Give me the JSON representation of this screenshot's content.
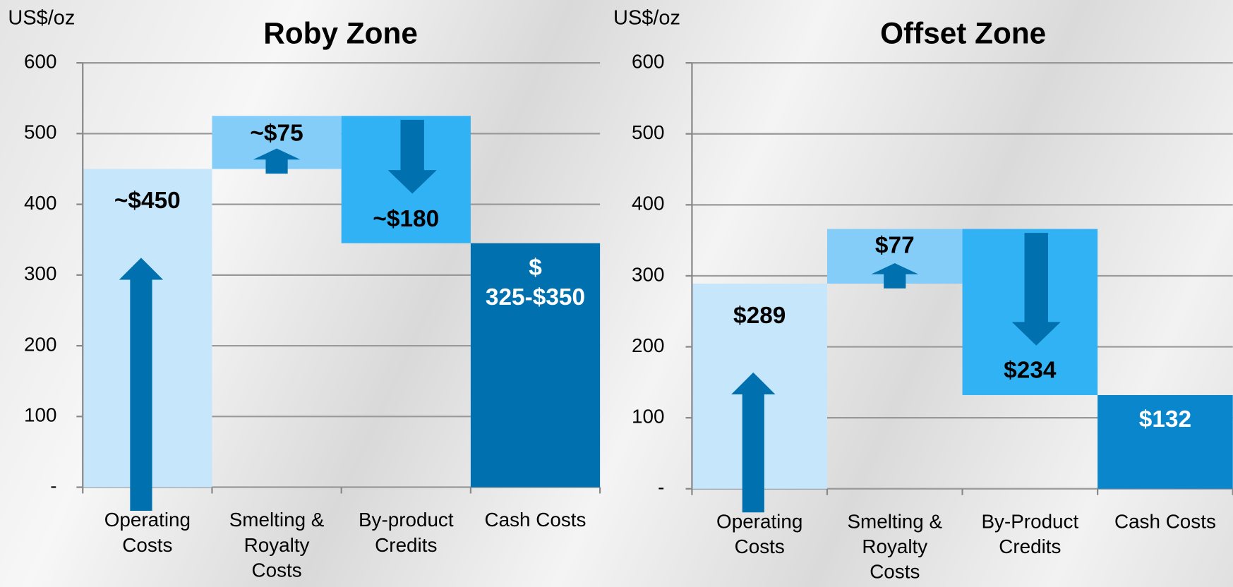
{
  "chart_data": [
    {
      "type": "waterfall",
      "title": "Roby Zone",
      "y_label": "US$/oz",
      "categories": [
        "Operating Costs",
        "Smelting & Royalty Costs",
        "By-product Credits",
        "Cash Costs"
      ],
      "values": [
        450,
        75,
        -180,
        345
      ],
      "value_labels": [
        "~$450",
        "~$75",
        "~$180",
        "$ 325-$350"
      ],
      "colors": [
        "#c5e6fb",
        "#84cdf8",
        "#30b2f5",
        "#0070ae"
      ],
      "ylim": [
        0,
        600
      ],
      "yticks": [
        {
          "value": 0,
          "label": "-"
        },
        100,
        200,
        300,
        400,
        500,
        600
      ],
      "grid": true
    },
    {
      "type": "waterfall",
      "title": "Offset Zone",
      "y_label": "US$/oz",
      "categories": [
        "Operating Costs",
        "Smelting & Royalty Costs",
        "By-Product Credits",
        "Cash Costs"
      ],
      "values": [
        289,
        77,
        -234,
        132
      ],
      "value_labels": [
        "$289",
        "$77",
        "$234",
        "$132"
      ],
      "colors": [
        "#c5e6fb",
        "#84cdf8",
        "#30b2f5",
        "#0a86cc"
      ],
      "ylim": [
        0,
        600
      ],
      "yticks": [
        {
          "value": 0,
          "label": "-"
        },
        100,
        200,
        300,
        400,
        500,
        600
      ],
      "grid": true
    }
  ]
}
